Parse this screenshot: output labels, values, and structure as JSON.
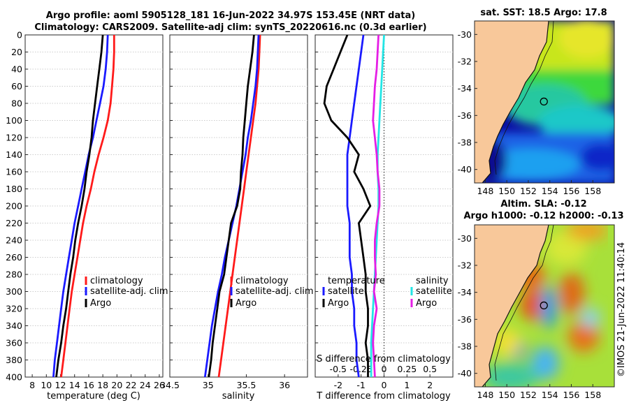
{
  "titles": {
    "line1": "Argo profile: aoml 5905128_181 16-Jun-2022 34.97S 153.45E (NRT data)",
    "line2": "Climatology: CARS2009. Satellite-adj clim: synTS_20220616.nc (0.3d earlier)"
  },
  "colors": {
    "climatology": "#ff1a1a",
    "satellite": "#1a1aff",
    "argo": "#000000",
    "sal_satellite": "#22e5e5",
    "sal_argo": "#e51ee5",
    "land": "#f8c89a"
  },
  "depth_axis": {
    "ticks": [
      0,
      20,
      40,
      60,
      80,
      100,
      120,
      140,
      160,
      180,
      200,
      220,
      240,
      260,
      280,
      300,
      320,
      340,
      360,
      380,
      400
    ],
    "range": [
      0,
      400
    ]
  },
  "chart_data": [
    {
      "type": "line",
      "panel": "temperature",
      "xlabel": "temperature (deg C)",
      "ylabel": "depth",
      "xlim": [
        7,
        26.5
      ],
      "xticks": [
        8,
        10,
        12,
        14,
        16,
        18,
        20,
        22,
        24,
        26
      ],
      "ylim": [
        0,
        400
      ],
      "legend": [
        "climatology",
        "satellite-adj. clim",
        "Argo"
      ],
      "series": [
        {
          "name": "climatology",
          "depth": [
            0,
            20,
            40,
            60,
            80,
            100,
            120,
            140,
            160,
            180,
            200,
            220,
            240,
            260,
            280,
            300,
            320,
            340,
            360,
            380,
            400
          ],
          "values": [
            19.6,
            19.6,
            19.5,
            19.3,
            19.1,
            18.7,
            18.1,
            17.4,
            16.8,
            16.3,
            15.7,
            15.2,
            14.8,
            14.4,
            14.0,
            13.6,
            13.3,
            13.0,
            12.7,
            12.4,
            12.1
          ]
        },
        {
          "name": "satellite-adj. clim",
          "depth": [
            0,
            20,
            40,
            60,
            80,
            100,
            120,
            140,
            160,
            180,
            200,
            220,
            240,
            260,
            280,
            300,
            320,
            340,
            360,
            380,
            400
          ],
          "values": [
            18.7,
            18.6,
            18.4,
            18.1,
            17.6,
            17.1,
            16.6,
            16.0,
            15.5,
            15.0,
            14.5,
            14.0,
            13.6,
            13.2,
            12.8,
            12.4,
            12.1,
            11.8,
            11.5,
            11.2,
            11.0
          ]
        },
        {
          "name": "Argo",
          "depth": [
            0,
            20,
            40,
            60,
            80,
            100,
            120,
            140,
            160,
            180,
            200,
            220,
            240,
            260,
            280,
            300,
            320,
            340,
            360,
            380,
            400
          ],
          "values": [
            18.0,
            17.8,
            17.5,
            17.2,
            16.9,
            16.6,
            16.4,
            16.1,
            15.7,
            15.4,
            15.0,
            14.5,
            14.1,
            13.8,
            13.4,
            13.1,
            12.8,
            12.4,
            12.1,
            11.7,
            11.4
          ]
        }
      ]
    },
    {
      "type": "line",
      "panel": "salinity",
      "xlabel": "salinity",
      "xlim": [
        34.5,
        36.3
      ],
      "xticks": [
        34.5,
        35,
        35.5,
        36
      ],
      "xticklabels": [
        "34.5",
        "35",
        "35.5",
        "36"
      ],
      "ylim": [
        0,
        400
      ],
      "legend": [
        "climatology",
        "satellite-adj. clim",
        "Argo"
      ],
      "series": [
        {
          "name": "climatology",
          "depth": [
            0,
            20,
            40,
            60,
            80,
            100,
            120,
            140,
            160,
            180,
            200,
            220,
            240,
            260,
            280,
            300,
            320,
            340,
            360,
            380,
            400
          ],
          "values": [
            35.68,
            35.67,
            35.66,
            35.64,
            35.62,
            35.59,
            35.56,
            35.53,
            35.5,
            35.47,
            35.44,
            35.41,
            35.38,
            35.35,
            35.32,
            35.29,
            35.26,
            35.23,
            35.2,
            35.17,
            35.14
          ]
        },
        {
          "name": "satellite-adj. clim",
          "depth": [
            0,
            20,
            40,
            60,
            80,
            100,
            120,
            140,
            160,
            180,
            200,
            220,
            240,
            260,
            280,
            300,
            320,
            340,
            360,
            380,
            400
          ],
          "values": [
            35.66,
            35.65,
            35.64,
            35.62,
            35.59,
            35.56,
            35.52,
            35.49,
            35.45,
            35.41,
            35.37,
            35.32,
            35.27,
            35.22,
            35.18,
            35.13,
            35.09,
            35.05,
            35.02,
            34.99,
            34.96
          ]
        },
        {
          "name": "Argo",
          "depth": [
            0,
            20,
            40,
            60,
            80,
            100,
            120,
            140,
            160,
            180,
            200,
            220,
            240,
            260,
            280,
            300,
            320,
            340,
            360,
            380,
            400
          ],
          "values": [
            35.6,
            35.58,
            35.55,
            35.52,
            35.5,
            35.48,
            35.46,
            35.45,
            35.43,
            35.42,
            35.38,
            35.3,
            35.27,
            35.24,
            35.21,
            35.15,
            35.12,
            35.09,
            35.06,
            35.04,
            35.01
          ]
        }
      ]
    },
    {
      "type": "line",
      "panel": "difference",
      "xlabel": "T difference from climatology",
      "xlim": [
        -3,
        3
      ],
      "xticks": [
        -2,
        -1,
        0,
        1,
        2
      ],
      "xticklabels": [
        "-2",
        "-1",
        "0",
        "1",
        "2"
      ],
      "top_xlabel": "S difference from climatology",
      "top_xlim": [
        -0.75,
        0.75
      ],
      "top_xticks": [
        -0.5,
        -0.25,
        0,
        0.25,
        0.5
      ],
      "top_xticklabels": [
        "-0.5",
        "-0.25",
        "0",
        "0.25",
        "0.5"
      ],
      "ylim": [
        0,
        400
      ],
      "legend_left": {
        "title": "temperature",
        "entries": [
          "satellite",
          "Argo"
        ]
      },
      "legend_right": {
        "title": "salinity",
        "entries": [
          "satellite",
          "Argo"
        ]
      },
      "series": [
        {
          "name": "temperature satellite",
          "axis": "T",
          "depth": [
            0,
            20,
            40,
            60,
            80,
            100,
            120,
            140,
            160,
            180,
            200,
            220,
            240,
            260,
            280,
            300,
            320,
            340,
            360,
            380,
            400
          ],
          "values": [
            -0.9,
            -1.0,
            -1.1,
            -1.2,
            -1.3,
            -1.4,
            -1.5,
            -1.6,
            -1.6,
            -1.6,
            -1.6,
            -1.5,
            -1.5,
            -1.5,
            -1.4,
            -1.4,
            -1.3,
            -1.3,
            -1.2,
            -1.2,
            -1.1
          ]
        },
        {
          "name": "temperature Argo",
          "axis": "T",
          "depth": [
            0,
            20,
            40,
            60,
            80,
            100,
            120,
            140,
            160,
            180,
            200,
            220,
            240,
            260,
            280,
            300,
            320,
            340,
            360,
            380,
            400
          ],
          "values": [
            -1.6,
            -1.9,
            -2.2,
            -2.5,
            -2.6,
            -2.3,
            -1.6,
            -1.1,
            -1.3,
            -0.9,
            -0.6,
            -1.1,
            -1.0,
            -0.9,
            -0.8,
            -0.8,
            -0.7,
            -0.7,
            -0.8,
            -0.7,
            -0.7
          ]
        },
        {
          "name": "salinity satellite",
          "axis": "S",
          "depth": [
            0,
            20,
            40,
            60,
            80,
            100,
            120,
            140,
            160,
            180,
            200,
            220,
            240,
            260,
            280,
            300,
            320,
            340,
            360,
            380,
            400
          ],
          "values": [
            0,
            -0.01,
            -0.02,
            -0.03,
            -0.04,
            -0.05,
            -0.06,
            -0.07,
            -0.07,
            -0.06,
            -0.06,
            -0.07,
            -0.08,
            -0.09,
            -0.1,
            -0.11,
            -0.12,
            -0.13,
            -0.14,
            -0.14,
            -0.14
          ]
        },
        {
          "name": "salinity Argo",
          "axis": "S",
          "depth": [
            0,
            20,
            40,
            60,
            80,
            100,
            120,
            140,
            160,
            180,
            200,
            220,
            240,
            260,
            280,
            300,
            320,
            340,
            360,
            380,
            400
          ],
          "values": [
            -0.06,
            -0.07,
            -0.08,
            -0.1,
            -0.11,
            -0.12,
            -0.1,
            -0.08,
            -0.07,
            -0.05,
            -0.05,
            -0.08,
            -0.1,
            -0.1,
            -0.09,
            -0.11,
            -0.08,
            -0.11,
            -0.12,
            -0.11,
            -0.1
          ]
        }
      ]
    },
    {
      "type": "heatmap",
      "panel": "sst_map",
      "title": "sat. SST: 18.5 Argo: 17.8",
      "xticks": [
        148,
        150,
        152,
        154,
        156,
        158
      ],
      "yticks": [
        -30,
        -32,
        -34,
        -36,
        -38,
        -40
      ],
      "xlim": [
        147,
        160
      ],
      "ylim": [
        -41,
        -29
      ]
    },
    {
      "type": "heatmap",
      "panel": "sla_map",
      "title_line1": "Altim. SLA: -0.12",
      "title_line2": "Argo h1000: -0.12 h2000: -0.13",
      "xticks": [
        148,
        150,
        152,
        154,
        156,
        158
      ],
      "yticks": [
        -30,
        -32,
        -34,
        -36,
        -38,
        -40
      ],
      "xlim": [
        147,
        160
      ],
      "ylim": [
        -41,
        -29
      ]
    }
  ],
  "argo_position": {
    "lon": 153.45,
    "lat": -34.97
  },
  "stamp": "©IMOS 21-Jun-2022 11:40:14"
}
